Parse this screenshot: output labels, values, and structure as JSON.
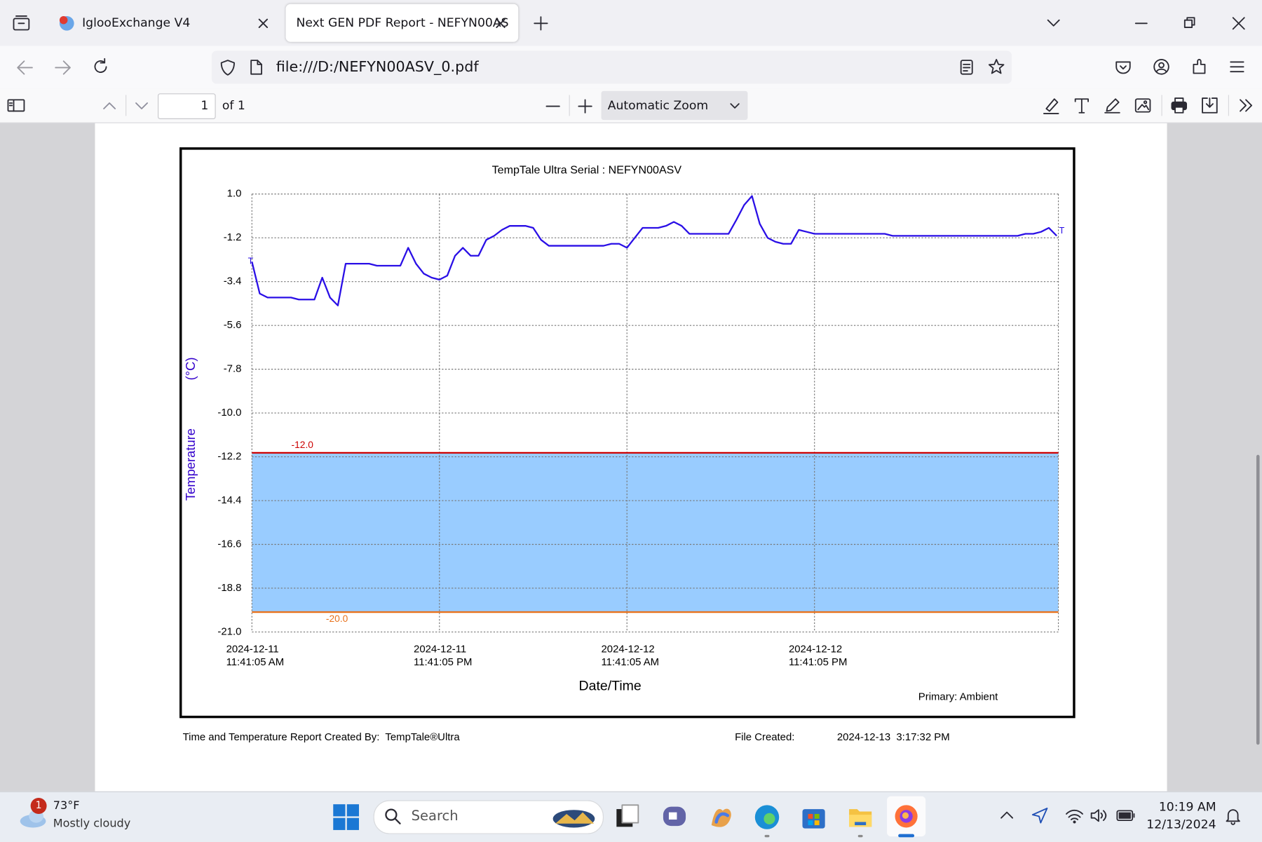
{
  "browser": {
    "tabs": [
      {
        "title": "IglooExchange V4"
      },
      {
        "title": "Next GEN PDF Report - NEFYN00AS"
      }
    ],
    "url": "file:///D:/NEFYN00ASV_0.pdf"
  },
  "pdf_toolbar": {
    "page": "1",
    "page_count": "of 1",
    "zoom": "Automatic Zoom"
  },
  "chart_data": {
    "type": "line",
    "title": "TempTale Ultra  Serial : NEFYN00ASV",
    "y_label": "Temperature",
    "y_unit": "(°C)",
    "x_label": "Date/Time",
    "markers": [
      "T",
      "T"
    ],
    "x": [
      "2024-12-11T11:41:05",
      "2024-12-11T12:11:05",
      "2024-12-11T12:41:05",
      "2024-12-11T13:11:05",
      "2024-12-11T13:41:05",
      "2024-12-11T14:11:05",
      "2024-12-11T14:41:05",
      "2024-12-11T15:11:05",
      "2024-12-11T15:41:05",
      "2024-12-11T16:11:05",
      "2024-12-11T16:41:05",
      "2024-12-11T17:11:05",
      "2024-12-11T17:41:05",
      "2024-12-11T18:11:05",
      "2024-12-11T18:41:05",
      "2024-12-11T19:11:05",
      "2024-12-11T19:41:05",
      "2024-12-11T20:11:05",
      "2024-12-11T20:41:05",
      "2024-12-11T21:11:05",
      "2024-12-11T21:41:05",
      "2024-12-11T22:11:05",
      "2024-12-11T22:41:05",
      "2024-12-11T23:11:05",
      "2024-12-11T23:41:05",
      "2024-12-12T00:11:05",
      "2024-12-12T00:41:05",
      "2024-12-12T01:11:05",
      "2024-12-12T01:41:05",
      "2024-12-12T02:11:05",
      "2024-12-12T02:41:05",
      "2024-12-12T03:11:05",
      "2024-12-12T03:41:05",
      "2024-12-12T04:11:05",
      "2024-12-12T04:41:05",
      "2024-12-12T05:11:05",
      "2024-12-12T05:41:05",
      "2024-12-12T06:11:05",
      "2024-12-12T06:41:05",
      "2024-12-12T07:11:05",
      "2024-12-12T07:41:05",
      "2024-12-12T08:11:05",
      "2024-12-12T08:41:05",
      "2024-12-12T09:11:05",
      "2024-12-12T09:41:05",
      "2024-12-12T10:11:05",
      "2024-12-12T10:41:05",
      "2024-12-12T11:11:05",
      "2024-12-12T11:41:05",
      "2024-12-12T12:11:05",
      "2024-12-12T12:41:05",
      "2024-12-12T13:11:05",
      "2024-12-12T13:41:05",
      "2024-12-12T14:11:05",
      "2024-12-12T14:41:05",
      "2024-12-12T15:11:05",
      "2024-12-12T15:41:05",
      "2024-12-12T16:11:05",
      "2024-12-12T16:41:05",
      "2024-12-12T17:11:05",
      "2024-12-12T17:41:05",
      "2024-12-12T18:11:05",
      "2024-12-12T18:41:05",
      "2024-12-12T19:11:05",
      "2024-12-12T19:41:05",
      "2024-12-12T20:11:05",
      "2024-12-12T20:41:05",
      "2024-12-12T21:11:05",
      "2024-12-12T21:41:05",
      "2024-12-12T22:11:05",
      "2024-12-12T22:41:05",
      "2024-12-12T23:11:05",
      "2024-12-12T23:41:05",
      "2024-12-13T00:11:05",
      "2024-12-13T00:41:05",
      "2024-12-13T01:11:05",
      "2024-12-13T01:41:05",
      "2024-12-13T02:11:05",
      "2024-12-13T02:41:05",
      "2024-12-13T03:11:05",
      "2024-12-13T03:41:05",
      "2024-12-13T04:11:05",
      "2024-12-13T04:41:05",
      "2024-12-13T05:11:05",
      "2024-12-13T05:41:05",
      "2024-12-13T06:11:05",
      "2024-12-13T06:41:05",
      "2024-12-13T07:11:05",
      "2024-12-13T07:41:05",
      "2024-12-13T08:11:05",
      "2024-12-13T08:41:05",
      "2024-12-13T09:11:05",
      "2024-12-13T09:41:05",
      "2024-12-13T10:11:05",
      "2024-12-13T10:41:05",
      "2024-12-13T11:11:05",
      "2024-12-13T11:41:05",
      "2024-12-13T12:11:05",
      "2024-12-13T12:41:05",
      "2024-12-13T13:11:05",
      "2024-12-13T13:41:05",
      "2024-12-13T14:11:05",
      "2024-12-13T14:41:05",
      "2024-12-13T15:11:05"
    ],
    "series": [
      {
        "name": "Primary: Ambient",
        "color": "#2a0fe6",
        "values": [
          -2.4,
          -4.0,
          -4.2,
          -4.2,
          -4.2,
          -4.2,
          -4.3,
          -4.3,
          -4.3,
          -3.2,
          -4.2,
          -4.6,
          -2.5,
          -2.5,
          -2.5,
          -2.5,
          -2.6,
          -2.6,
          -2.6,
          -2.6,
          -1.7,
          -2.5,
          -3.0,
          -3.2,
          -3.3,
          -3.1,
          -2.1,
          -1.7,
          -2.1,
          -2.1,
          -1.3,
          -1.1,
          -0.8,
          -0.6,
          -0.6,
          -0.6,
          -0.7,
          -1.3,
          -1.6,
          -1.6,
          -1.6,
          -1.6,
          -1.6,
          -1.6,
          -1.6,
          -1.6,
          -1.5,
          -1.5,
          -1.7,
          -1.2,
          -0.7,
          -0.7,
          -0.7,
          -0.6,
          -0.4,
          -0.6,
          -1.0,
          -1.0,
          -1.0,
          -1.0,
          -1.0,
          -1.0,
          -0.3,
          0.45,
          0.9,
          -0.5,
          -1.2,
          -1.4,
          -1.5,
          -1.5,
          -0.8,
          -0.9,
          -1.0,
          -1.0,
          -1.0,
          -1.0,
          -1.0,
          -1.0,
          -1.0,
          -1.0,
          -1.0,
          -1.0,
          -1.1,
          -1.1,
          -1.1,
          -1.1,
          -1.1,
          -1.1,
          -1.1,
          -1.1,
          -1.1,
          -1.1,
          -1.1,
          -1.1,
          -1.1,
          -1.1,
          -1.1,
          -1.1,
          -1.1,
          -1.0,
          -1.0,
          -0.9,
          -0.7,
          -1.1
        ]
      }
    ],
    "thresholds": [
      {
        "value": -12,
        "label": "-12.0",
        "color": "#cc0000"
      },
      {
        "value": -20,
        "label": "-20.0",
        "color": "#e8721c"
      }
    ],
    "band_color": "#99ccff",
    "xlim": [
      "2024-12-11T11:41:05",
      "2024-12-13T15:17:32"
    ],
    "xticks": [
      {
        "value": "2024-12-11T11:41:05",
        "label": [
          "2024-12-11",
          "11:41:05 AM"
        ]
      },
      {
        "value": "2024-12-11T23:41:05",
        "label": [
          "2024-12-11",
          "11:41:05 PM"
        ]
      },
      {
        "value": "2024-12-12T11:41:05",
        "label": [
          "2024-12-12",
          "11:41:05 AM"
        ]
      },
      {
        "value": "2024-12-12T23:41:05",
        "label": [
          "2024-12-12",
          "11:41:05 PM"
        ]
      }
    ],
    "ylim": [
      -21,
      1
    ],
    "yticks": [
      {
        "value": 1,
        "label": "1.0"
      },
      -1.2,
      -3.4,
      -5.6,
      -7.8,
      {
        "value": -10,
        "label": "-10.0"
      },
      -12.2,
      -14.4,
      -16.6,
      -18.8,
      {
        "value": -21,
        "label": "-21.0"
      }
    ],
    "grid": true
  },
  "footer": {
    "created_by": "Time and Temperature Report Created By:  TempTale®Ultra",
    "file_created_label": "File Created:",
    "file_created": "2024-12-13  3:17:32 PM"
  },
  "taskbar": {
    "weather_badge": "1",
    "weather_temp": "73°F",
    "weather_text": "Mostly cloudy",
    "search": "Search",
    "time": "10:19 AM",
    "date": "12/13/2024"
  }
}
